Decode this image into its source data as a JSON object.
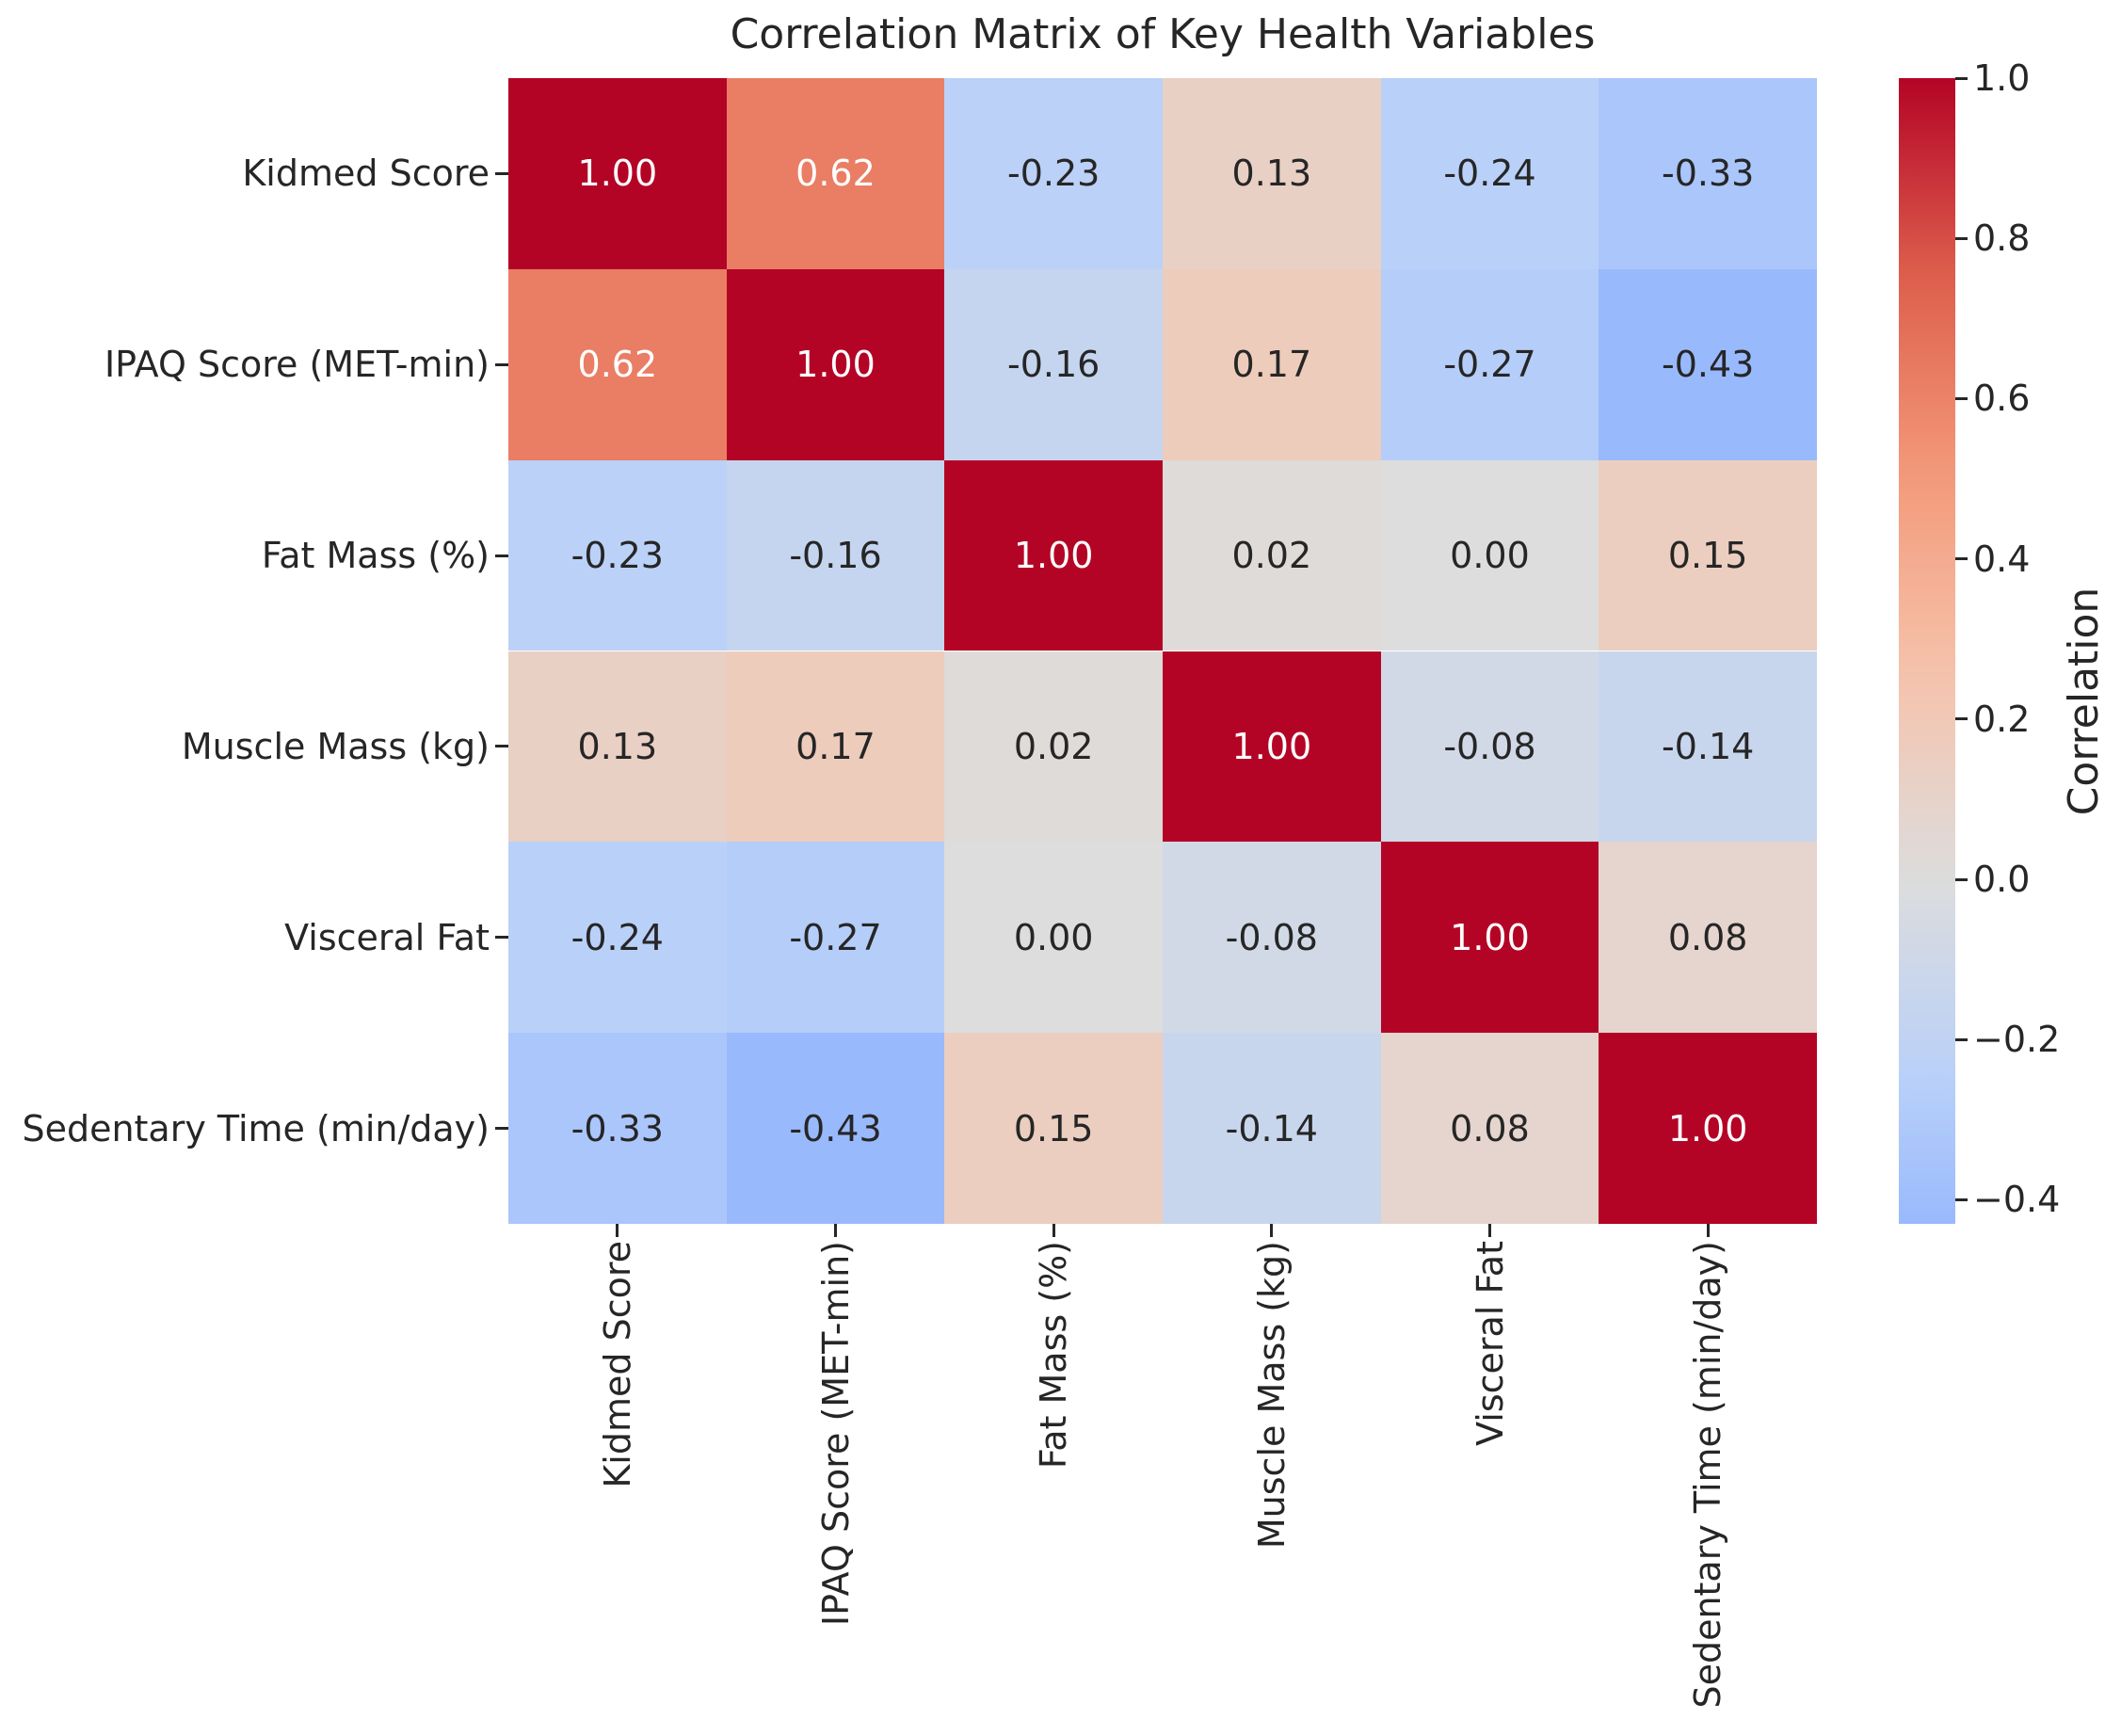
{
  "chart_data": {
    "type": "heatmap",
    "title": "Correlation Matrix of Key Health Variables",
    "labels": [
      "Kidmed Score",
      "IPAQ Score (MET-min)",
      "Fat Mass (%)",
      "Muscle Mass (kg)",
      "Visceral Fat",
      "Sedentary Time (min/day)"
    ],
    "matrix": [
      [
        1.0,
        0.62,
        -0.23,
        0.13,
        -0.24,
        -0.33
      ],
      [
        0.62,
        1.0,
        -0.16,
        0.17,
        -0.27,
        -0.43
      ],
      [
        -0.23,
        -0.16,
        1.0,
        0.02,
        0.0,
        0.15
      ],
      [
        0.13,
        0.17,
        0.02,
        1.0,
        -0.08,
        -0.14
      ],
      [
        -0.24,
        -0.27,
        0.0,
        -0.08,
        1.0,
        0.08
      ],
      [
        -0.33,
        -0.43,
        0.15,
        -0.14,
        0.08,
        1.0
      ]
    ],
    "value_decimals": 2,
    "cmap": "coolwarm",
    "center": 0,
    "norm_range": [
      -1,
      1
    ],
    "colorbar": {
      "label": "Correlation",
      "min": -0.43,
      "max": 1.0,
      "ticks": [
        {
          "value": 1.0,
          "label": "1.0"
        },
        {
          "value": 0.8,
          "label": "0.8"
        },
        {
          "value": 0.6,
          "label": "0.6"
        },
        {
          "value": 0.4,
          "label": "0.4"
        },
        {
          "value": 0.2,
          "label": "0.2"
        },
        {
          "value": 0.0,
          "label": "0.0"
        },
        {
          "value": -0.2,
          "label": "−0.2"
        },
        {
          "value": -0.4,
          "label": "−0.4"
        }
      ]
    },
    "colors": {
      "background": "#ffffff",
      "max_color": "#b40426",
      "mid_color": "#dddddd",
      "min_display_color": "#96b8fd",
      "text_dark": "#262626",
      "text_light": "#ffffff"
    },
    "legend_position": "right",
    "grid": false
  }
}
